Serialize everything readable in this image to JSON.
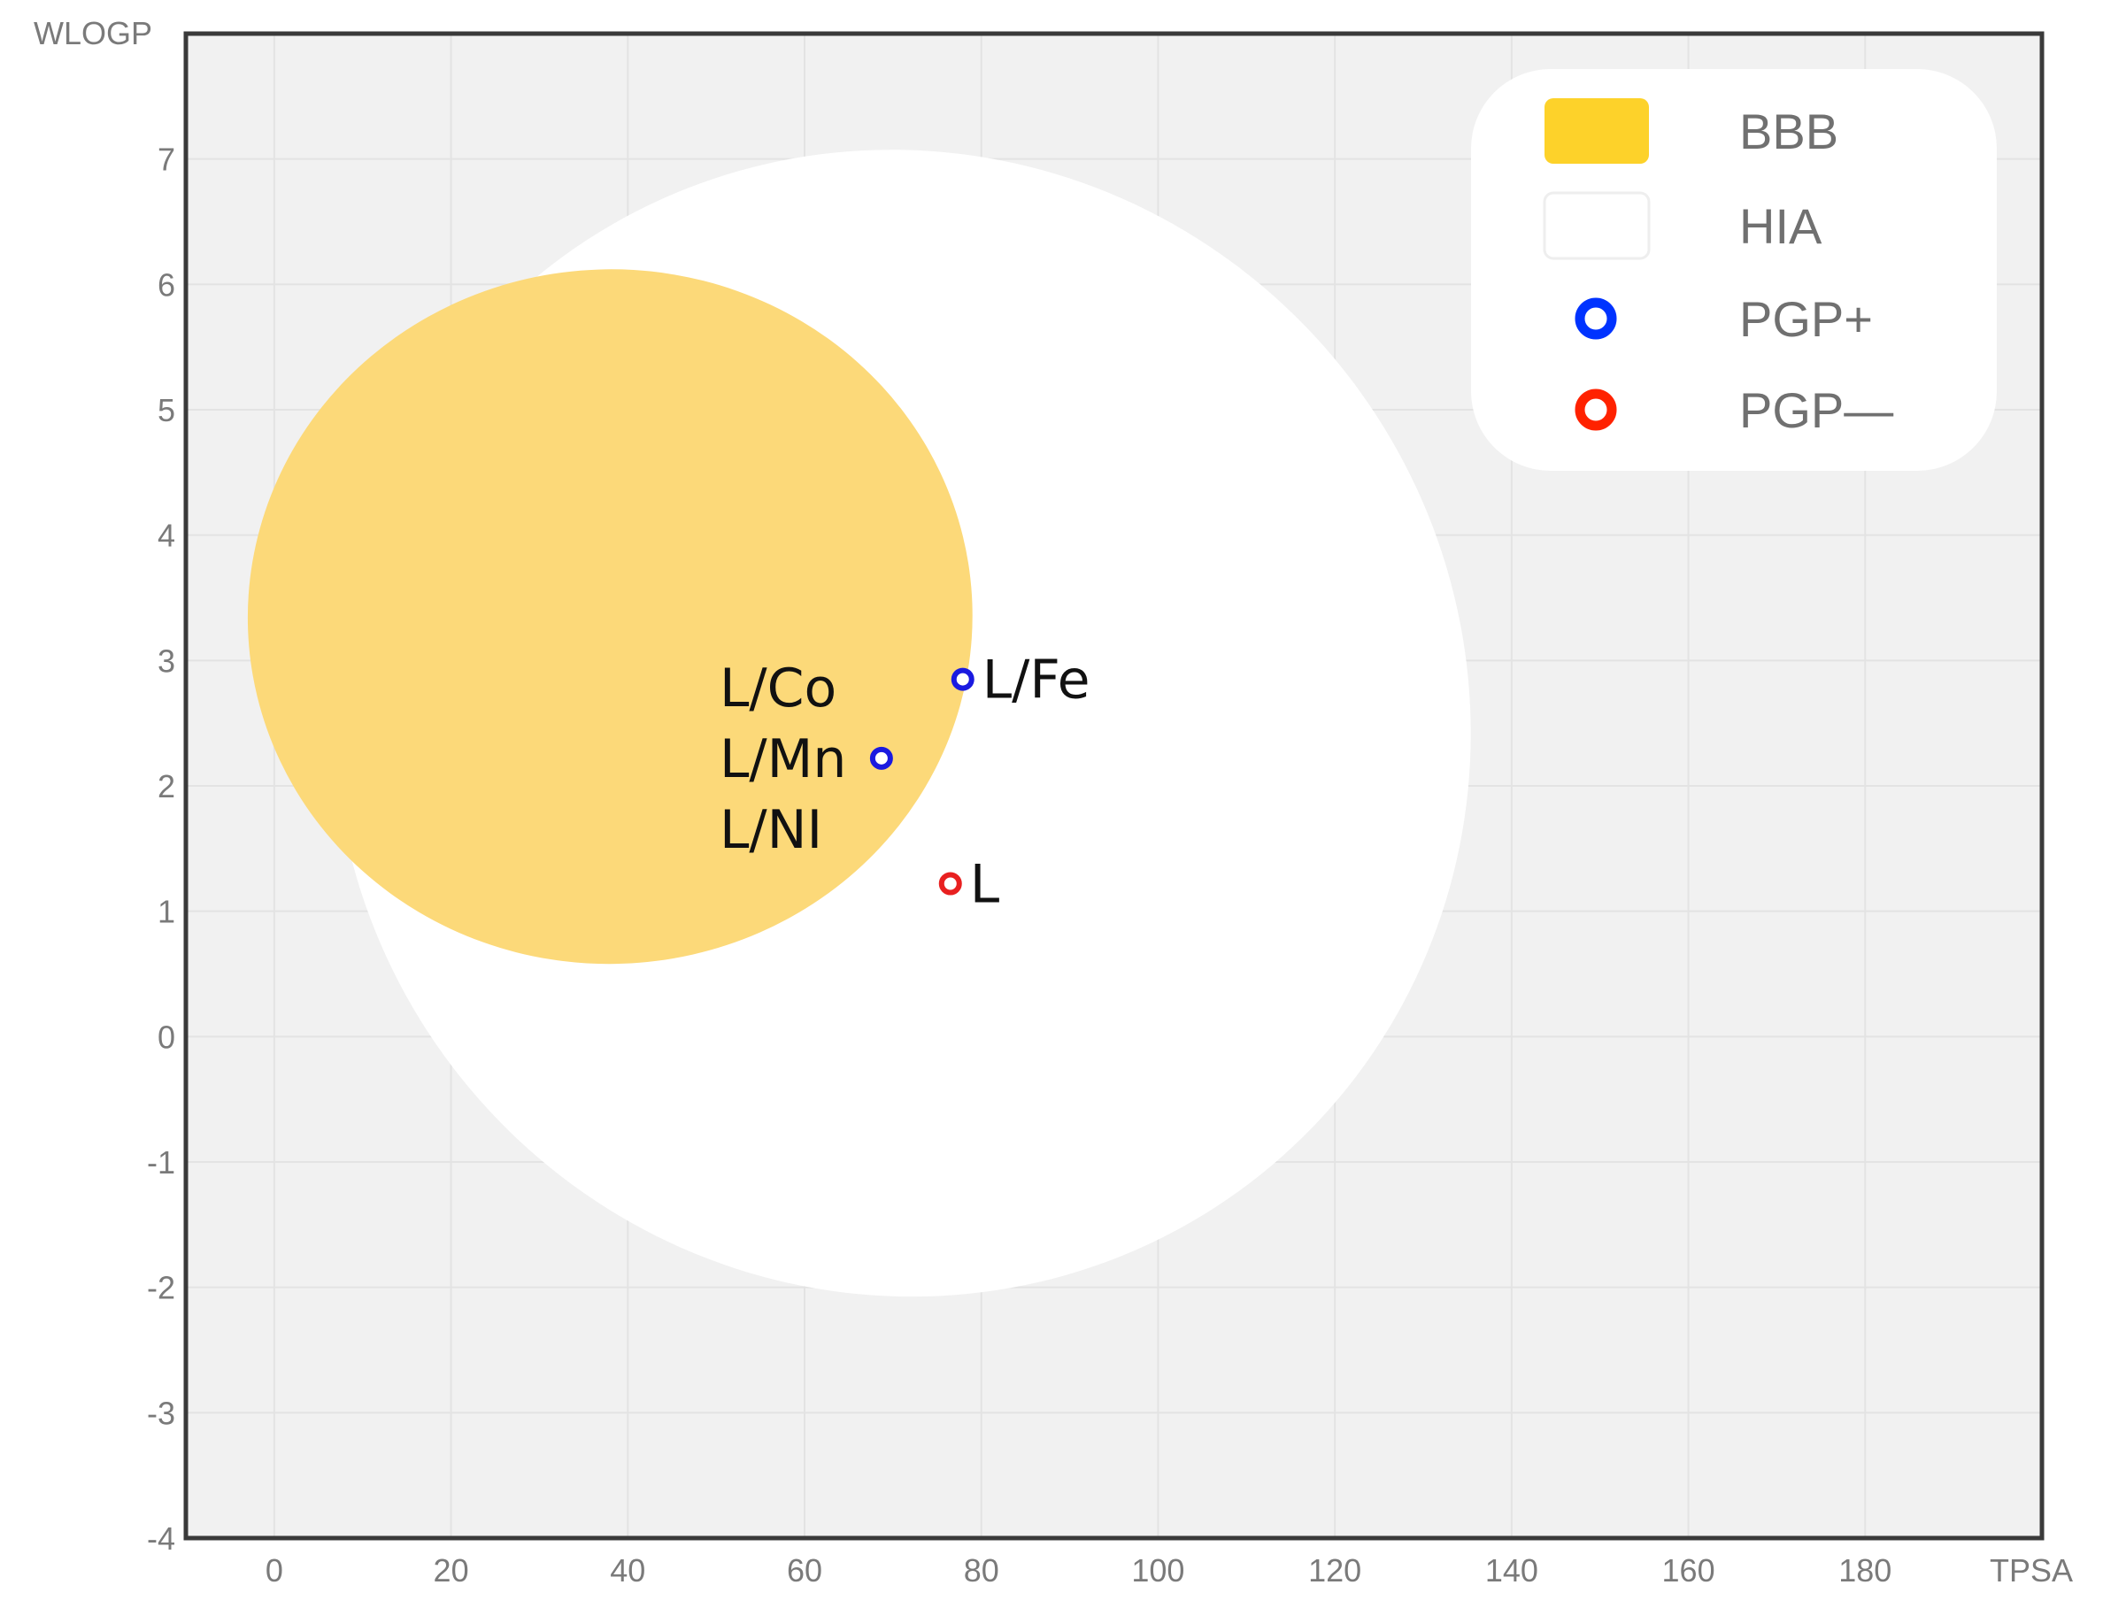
{
  "chart_data": {
    "type": "scatter",
    "xlabel": "TPSA",
    "ylabel": "WLOGP",
    "xlim": [
      -10,
      200
    ],
    "ylim": [
      -4,
      8
    ],
    "x_ticks": [
      "0",
      "20",
      "40",
      "60",
      "80",
      "100",
      "120",
      "140",
      "160",
      "180"
    ],
    "y_ticks": [
      "-4",
      "-3",
      "-2",
      "-1",
      "0",
      "1",
      "2",
      "3",
      "4",
      "5",
      "6",
      "7"
    ],
    "grid": true,
    "legend_position": "top-right",
    "regions": [
      {
        "name": "HIA",
        "shape": "ellipse",
        "cx": 71.0,
        "cy": 2.5,
        "rx": 64.0,
        "ry": 4.6,
        "angle_deg": -33,
        "color": "#ffffff"
      },
      {
        "name": "BBB",
        "shape": "ellipse",
        "cx": 38.0,
        "cy": 3.35,
        "rx": 41.0,
        "ry": 2.77,
        "angle_deg": -2,
        "color": "#fcd979"
      }
    ],
    "points": [
      {
        "x": 77.9,
        "y": 2.85,
        "label": "L/Fe",
        "class": "PGP+",
        "color": "#1a1ae0",
        "label_side": "right"
      },
      {
        "x": 68.7,
        "y": 2.22,
        "label_lines": [
          "L/Co",
          "L/Mn",
          "L/NI"
        ],
        "class": "PGP+",
        "color": "#1a1ae0",
        "label_side": "left"
      },
      {
        "x": 76.5,
        "y": 1.22,
        "label": "L",
        "class": "PGP—",
        "color": "#e82020",
        "label_side": "right"
      }
    ],
    "legend": [
      {
        "label": "BBB",
        "kind": "swatch",
        "color": "#fdd22a"
      },
      {
        "label": "HIA",
        "kind": "swatch",
        "color": "#ffffff"
      },
      {
        "label": "PGP+",
        "kind": "ring",
        "color": "#0033ff"
      },
      {
        "label": "PGP—",
        "kind": "ring",
        "color": "#ff2200"
      }
    ]
  }
}
